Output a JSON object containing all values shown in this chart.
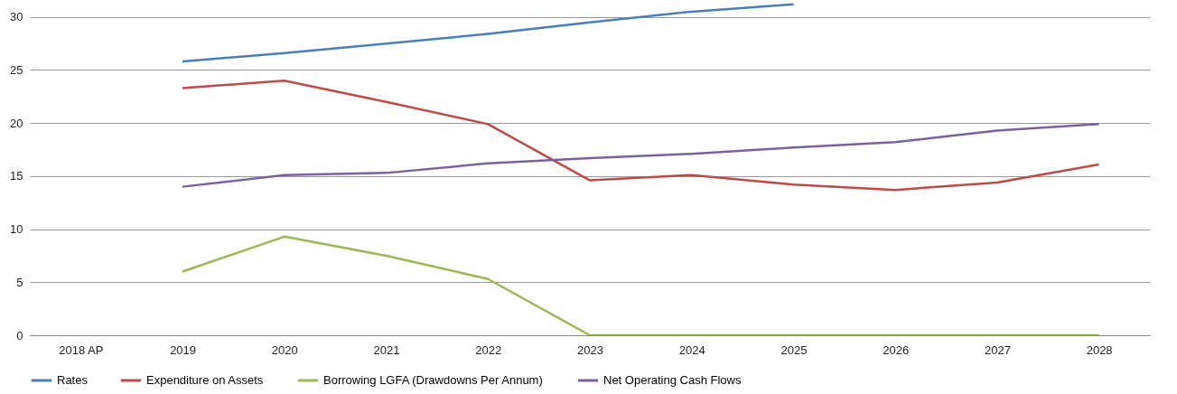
{
  "chart_data": {
    "type": "line",
    "categories": [
      "2018 AP",
      "2019",
      "2020",
      "2021",
      "2022",
      "2023",
      "2024",
      "2025",
      "2026",
      "2027",
      "2028"
    ],
    "series": [
      {
        "name": "Rates",
        "color": "#4a7ebb",
        "values": [
          null,
          25.8,
          26.6,
          27.5,
          28.4,
          29.5,
          30.5,
          31.2,
          null,
          null,
          null
        ]
      },
      {
        "name": "Expenditure on Assets",
        "color": "#be4b48",
        "values": [
          null,
          23.3,
          24.0,
          22.0,
          19.9,
          14.6,
          15.1,
          14.2,
          13.7,
          14.4,
          16.1
        ]
      },
      {
        "name": "Borrowing LGFA (Drawdowns Per Annum)",
        "color": "#98b954",
        "values": [
          null,
          6.0,
          9.3,
          7.5,
          5.3,
          0,
          0,
          0,
          0,
          0,
          0
        ]
      },
      {
        "name": "Net Operating Cash Flows",
        "color": "#7d60a0",
        "values": [
          null,
          14.0,
          15.1,
          15.3,
          16.2,
          16.7,
          17.1,
          17.7,
          18.2,
          19.3,
          19.9
        ]
      }
    ],
    "ylim": [
      0,
      31.6
    ],
    "yticks": [
      0,
      5,
      10,
      15,
      20,
      25,
      30
    ],
    "grid": "y",
    "legend": "bottom",
    "marker": "none",
    "line_style": "solid"
  }
}
